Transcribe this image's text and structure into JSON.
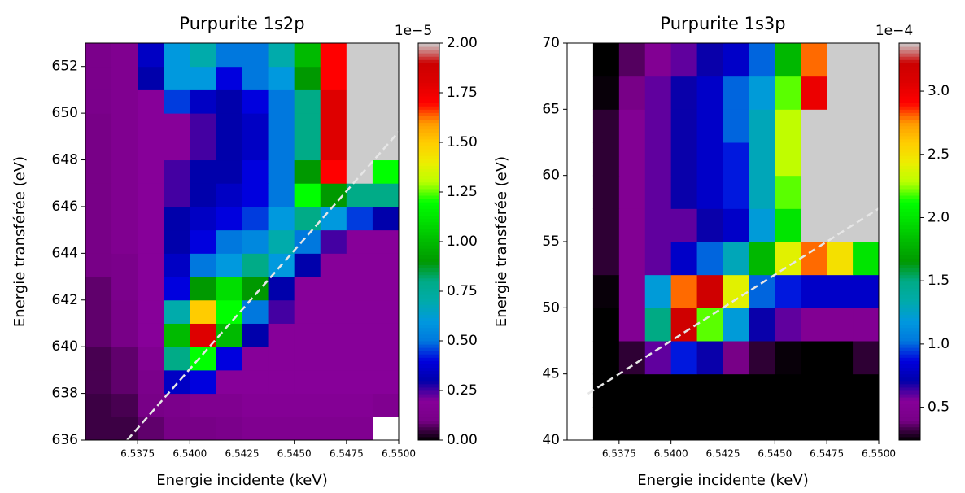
{
  "chart_data": [
    {
      "type": "heatmap",
      "title": "Purpurite 1s2p",
      "xlabel": "Energie incidente (keV)",
      "ylabel": "Energie transférée (eV)",
      "colormap": "nipy_spectral",
      "colorbar_offset": "1e−5",
      "xlim": [
        6.535,
        6.55
      ],
      "ylim": [
        636,
        653
      ],
      "clim": [
        0,
        2
      ],
      "xticks": [
        6.5375,
        {
          "value": 6.54,
          "label": "6.5400"
        },
        6.5425,
        {
          "value": 6.545,
          "label": "6.5450"
        },
        6.5475,
        {
          "value": 6.55,
          "label": "6.5500"
        }
      ],
      "yticks": [
        636,
        638,
        640,
        642,
        644,
        646,
        648,
        650,
        652
      ],
      "cticks": [
        {
          "value": 0,
          "label": "0.00"
        },
        {
          "value": 0.25,
          "label": "0.25"
        },
        {
          "value": 0.5,
          "label": "0.50"
        },
        {
          "value": 0.75,
          "label": "0.75"
        },
        {
          "value": 1,
          "label": "1.00"
        },
        {
          "value": 1.25,
          "label": "1.25"
        },
        {
          "value": 1.5,
          "label": "1.50"
        },
        {
          "value": 1.75,
          "label": "1.75"
        },
        {
          "value": 2,
          "label": "2.00"
        }
      ],
      "xbins": [
        6.535,
        6.53625,
        6.5375,
        6.53875,
        6.54,
        6.54125,
        6.5425,
        6.54375,
        6.545,
        6.54625,
        6.5475,
        6.54875,
        6.55
      ],
      "ybins": [
        636,
        637,
        638,
        639,
        640,
        641,
        642,
        643,
        644,
        645,
        646,
        647,
        648,
        649,
        650,
        651,
        652,
        653
      ],
      "z": [
        [
          0.05,
          0.05,
          0.08,
          0.1,
          0.1,
          0.12,
          0.15,
          0.15,
          0.15,
          0.15,
          0.15,
          null
        ],
        [
          0.05,
          0.06,
          0.1,
          0.12,
          0.15,
          0.15,
          0.18,
          0.18,
          0.18,
          0.18,
          0.18,
          0.15
        ],
        [
          0.06,
          0.08,
          0.12,
          0.35,
          0.4,
          0.2,
          0.2,
          0.2,
          0.2,
          0.2,
          0.2,
          0.2
        ],
        [
          0.06,
          0.08,
          0.15,
          0.8,
          1.2,
          0.4,
          0.2,
          0.2,
          0.2,
          0.2,
          0.2,
          0.2
        ],
        [
          0.08,
          0.1,
          0.2,
          1.0,
          1.8,
          1.0,
          0.3,
          0.2,
          0.2,
          0.2,
          0.2,
          0.2
        ],
        [
          0.08,
          0.1,
          0.2,
          0.7,
          1.5,
          1.2,
          0.5,
          0.25,
          0.2,
          0.2,
          0.2,
          0.2
        ],
        [
          0.08,
          0.12,
          0.2,
          0.4,
          0.9,
          1.1,
          0.9,
          0.3,
          0.2,
          0.2,
          0.2,
          0.2
        ],
        [
          0.1,
          0.12,
          0.2,
          0.35,
          0.5,
          0.6,
          0.8,
          0.6,
          0.3,
          0.2,
          0.2,
          0.2
        ],
        [
          0.1,
          0.15,
          0.2,
          0.3,
          0.4,
          0.5,
          0.55,
          0.7,
          0.5,
          0.25,
          0.2,
          0.2
        ],
        [
          0.1,
          0.15,
          0.2,
          0.3,
          0.35,
          0.4,
          0.45,
          0.6,
          0.8,
          0.6,
          0.45,
          0.3
        ],
        [
          0.1,
          0.15,
          0.2,
          0.25,
          0.3,
          0.35,
          0.4,
          0.5,
          1.2,
          0.9,
          0.8,
          0.8
        ],
        [
          0.1,
          0.15,
          0.2,
          0.25,
          0.3,
          0.3,
          0.4,
          0.5,
          0.9,
          1.7,
          2.5,
          1.2
        ],
        [
          0.1,
          0.15,
          0.2,
          0.2,
          0.25,
          0.3,
          0.35,
          0.5,
          0.8,
          1.8,
          2.5,
          2.5
        ],
        [
          0.1,
          0.15,
          0.2,
          0.2,
          0.25,
          0.3,
          0.35,
          0.5,
          0.8,
          1.8,
          2.5,
          2.5
        ],
        [
          0.12,
          0.15,
          0.2,
          0.45,
          0.35,
          0.3,
          0.4,
          0.5,
          0.8,
          1.8,
          2.5,
          2.5
        ],
        [
          0.12,
          0.15,
          0.3,
          0.6,
          0.6,
          0.4,
          0.5,
          0.6,
          0.9,
          1.7,
          2.5,
          2.5
        ],
        [
          0.12,
          0.15,
          0.35,
          0.6,
          0.7,
          0.5,
          0.5,
          0.7,
          1.0,
          1.7,
          2.5,
          2.5
        ]
      ],
      "dashed_line": {
        "x": [
          6.537,
          6.55
        ],
        "y": [
          636,
          649.2
        ],
        "color": "#e6e6e6"
      }
    },
    {
      "type": "heatmap",
      "title": "Purpurite 1s3p",
      "xlabel": "Energie incidente (keV)",
      "ylabel": "Energie transférée (eV)",
      "colormap": "nipy_spectral",
      "colorbar_offset": "1e−4",
      "xlim": [
        6.535,
        6.55
      ],
      "ylim": [
        40,
        70
      ],
      "clim": [
        0.24,
        3.38
      ],
      "xticks": [
        6.5375,
        {
          "value": 6.54,
          "label": "6.5400"
        },
        6.5425,
        {
          "value": 6.545,
          "label": "6.5450"
        },
        6.5475,
        {
          "value": 6.55,
          "label": "6.5500"
        }
      ],
      "yticks": [
        40,
        45,
        50,
        55,
        60,
        65,
        70
      ],
      "cticks": [
        0.5,
        {
          "value": 1,
          "label": "1.0"
        },
        1.5,
        {
          "value": 2,
          "label": "2.0"
        },
        2.5,
        {
          "value": 3,
          "label": "3.0"
        }
      ],
      "xbins": [
        6.535,
        6.53625,
        6.5375,
        6.53875,
        6.54,
        6.54125,
        6.5425,
        6.54375,
        6.545,
        6.54625,
        6.5475,
        6.54875,
        6.55
      ],
      "ybins": [
        40,
        42.5,
        45,
        47.5,
        50,
        52.5,
        55,
        57.5,
        60,
        62.5,
        65,
        67.5,
        70
      ],
      "z": [
        [
          null,
          0.1,
          0.1,
          0.1,
          0.1,
          0.1,
          0.1,
          0.1,
          0.1,
          0.1,
          0.1,
          0.1
        ],
        [
          null,
          0.1,
          0.1,
          0.15,
          0.2,
          0.15,
          0.1,
          0.1,
          0.1,
          0.1,
          0.1,
          0.1
        ],
        [
          null,
          0.15,
          0.3,
          0.6,
          0.9,
          0.7,
          0.4,
          0.3,
          0.25,
          0.2,
          0.15,
          0.3
        ],
        [
          null,
          0.2,
          0.5,
          1.5,
          3.2,
          2.2,
          1.2,
          0.7,
          0.6,
          0.5,
          0.5,
          0.5
        ],
        [
          null,
          0.25,
          0.5,
          1.2,
          2.8,
          3.2,
          2.4,
          1.0,
          0.9,
          0.8,
          0.8,
          0.8
        ],
        [
          null,
          0.3,
          0.5,
          0.6,
          0.8,
          1.0,
          1.3,
          1.8,
          2.4,
          2.8,
          2.5,
          2.0
        ],
        [
          null,
          0.3,
          0.5,
          0.6,
          0.6,
          0.7,
          0.8,
          1.2,
          2.0,
          3.5,
          3.5,
          3.5
        ],
        [
          null,
          0.3,
          0.5,
          0.6,
          0.7,
          0.8,
          0.9,
          1.3,
          2.2,
          3.5,
          3.5,
          3.5
        ],
        [
          null,
          0.3,
          0.5,
          0.6,
          0.7,
          0.8,
          0.9,
          1.3,
          2.3,
          3.5,
          3.5,
          3.5
        ],
        [
          null,
          0.3,
          0.5,
          0.6,
          0.7,
          0.8,
          1.0,
          1.3,
          2.3,
          3.5,
          3.5,
          3.5
        ],
        [
          null,
          0.25,
          0.4,
          0.6,
          0.7,
          0.8,
          1.0,
          1.2,
          2.2,
          3.0,
          3.5,
          3.5
        ],
        [
          null,
          0.2,
          0.35,
          0.5,
          0.6,
          0.7,
          0.8,
          1.0,
          1.8,
          2.8,
          3.5,
          3.5
        ]
      ],
      "dashed_line": {
        "x": [
          6.536,
          6.55
        ],
        "y": [
          43.5,
          57.5
        ],
        "color": "#e6e6e6"
      }
    }
  ]
}
